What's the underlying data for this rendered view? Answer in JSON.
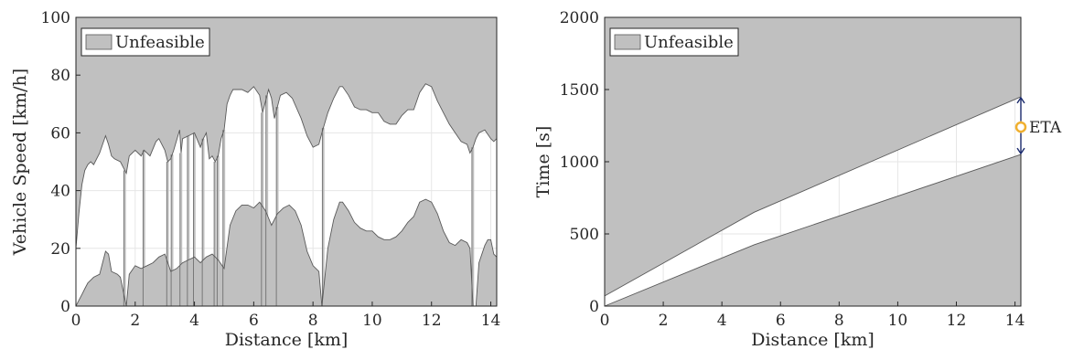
{
  "colors": {
    "unfeasible_fill": "#c0c0c0",
    "boundary_line": "#595959",
    "grid": "#e6e6e6",
    "eta_marker": "#f0b030",
    "eta_arrow": "#1a2a6c"
  },
  "chart_data": [
    {
      "type": "area",
      "xlabel": "Distance [km]",
      "ylabel": "Vehicle Speed [km/h]",
      "xlim": [
        0,
        14.2
      ],
      "ylim": [
        0,
        100
      ],
      "xticks": [
        0,
        2,
        4,
        6,
        8,
        10,
        12,
        14
      ],
      "xtick_labels": [
        "0",
        "2",
        "4",
        "6",
        "8",
        "10",
        "12",
        "14"
      ],
      "yticks": [
        0,
        20,
        40,
        60,
        80,
        100
      ],
      "ytick_labels": [
        "0",
        "20",
        "40",
        "60",
        "80",
        "100"
      ],
      "grid": true,
      "legend": {
        "entries": [
          "Unfeasible"
        ],
        "location": "top-left"
      },
      "series": [
        {
          "name": "Unfeasible",
          "role": "upper speed bound",
          "x": [
            0,
            0.1,
            0.2,
            0.3,
            0.4,
            0.5,
            0.6,
            0.8,
            1.0,
            1.1,
            1.2,
            1.3,
            1.5,
            1.6,
            1.7,
            1.8,
            2.0,
            2.2,
            2.3,
            2.5,
            2.7,
            2.8,
            3.0,
            3.1,
            3.2,
            3.3,
            3.5,
            3.55,
            3.6,
            3.8,
            4.0,
            4.2,
            4.3,
            4.4,
            4.5,
            4.6,
            4.7,
            4.8,
            4.9,
            5.0,
            5.1,
            5.2,
            5.3,
            5.6,
            5.8,
            6.0,
            6.2,
            6.3,
            6.5,
            6.6,
            6.7,
            6.9,
            7.1,
            7.3,
            7.6,
            7.8,
            8.0,
            8.2,
            8.3,
            8.5,
            8.7,
            8.9,
            9.0,
            9.2,
            9.4,
            9.6,
            9.8,
            10.0,
            10.2,
            10.4,
            10.6,
            10.8,
            11.0,
            11.2,
            11.4,
            11.6,
            11.8,
            12.0,
            12.2,
            12.4,
            12.6,
            12.8,
            13.0,
            13.2,
            13.3,
            13.4,
            13.5,
            13.6,
            13.8,
            14.0,
            14.1,
            14.2
          ],
          "values": [
            20,
            32,
            42,
            47,
            49,
            50,
            49,
            53,
            59,
            56,
            52,
            51,
            50,
            48,
            46,
            52,
            54,
            52,
            54,
            52,
            57,
            58,
            54,
            50,
            51,
            54,
            61,
            53,
            58,
            59,
            60,
            55,
            58,
            60,
            51,
            52,
            50,
            52,
            58,
            61,
            70,
            73,
            75,
            75,
            74,
            76,
            73,
            67,
            75,
            72,
            65,
            73,
            74,
            72,
            65,
            59,
            55,
            56,
            60,
            67,
            72,
            76,
            76,
            73,
            69,
            68,
            68,
            67,
            67,
            64,
            63,
            63,
            66,
            68,
            68,
            74,
            77,
            76,
            71,
            67,
            63,
            60,
            57,
            56,
            53,
            55,
            58,
            60,
            61,
            58,
            57,
            58
          ]
        },
        {
          "name": "Unfeasible",
          "role": "lower speed bound",
          "x": [
            0,
            0.1,
            0.2,
            0.3,
            0.4,
            0.5,
            0.6,
            0.8,
            1.0,
            1.1,
            1.2,
            1.4,
            1.5,
            1.6,
            1.7,
            1.8,
            2.0,
            2.2,
            2.4,
            2.6,
            2.8,
            3.0,
            3.2,
            3.4,
            3.6,
            3.8,
            4.0,
            4.2,
            4.4,
            4.6,
            4.8,
            5.0,
            5.2,
            5.4,
            5.6,
            5.8,
            6.0,
            6.2,
            6.4,
            6.6,
            6.8,
            7.0,
            7.2,
            7.4,
            7.6,
            7.8,
            8.0,
            8.2,
            8.3,
            8.5,
            8.7,
            8.9,
            9.0,
            9.2,
            9.4,
            9.6,
            9.8,
            10.0,
            10.2,
            10.4,
            10.6,
            10.8,
            11.0,
            11.2,
            11.4,
            11.6,
            11.8,
            12.0,
            12.2,
            12.4,
            12.6,
            12.8,
            13.0,
            13.2,
            13.3,
            13.4,
            13.5,
            13.6,
            13.8,
            13.9,
            14.0,
            14.1,
            14.2
          ],
          "values": [
            0,
            2,
            4,
            6,
            8,
            9,
            10,
            11,
            19,
            18,
            12,
            11,
            10,
            5,
            0,
            11,
            14,
            13,
            14,
            15,
            17,
            18,
            12,
            13,
            15,
            16,
            17,
            15,
            17,
            18,
            16,
            13,
            28,
            33,
            35,
            35,
            34,
            36,
            33,
            28,
            32,
            34,
            35,
            33,
            28,
            19,
            14,
            12,
            0,
            20,
            30,
            36,
            36,
            33,
            29,
            27,
            26,
            26,
            24,
            23,
            23,
            24,
            26,
            29,
            31,
            36,
            37,
            36,
            32,
            26,
            22,
            21,
            23,
            22,
            20,
            0,
            0,
            15,
            21,
            23,
            23,
            18,
            17
          ]
        }
      ],
      "feasibility_gaps_x": [
        1.65,
        2.3,
        3.1,
        3.25,
        3.55,
        3.8,
        4.0,
        4.3,
        4.7,
        4.8,
        5.0,
        6.3,
        6.45,
        6.8,
        8.35,
        13.4
      ]
    },
    {
      "type": "area",
      "xlabel": "Distance [km]",
      "ylabel": "Time [s]",
      "xlim": [
        0,
        14.2
      ],
      "ylim": [
        0,
        2000
      ],
      "xticks": [
        0,
        2,
        4,
        6,
        8,
        10,
        12,
        14
      ],
      "xtick_labels": [
        "0",
        "2",
        "4",
        "6",
        "8",
        "10",
        "12",
        "14"
      ],
      "yticks": [
        0,
        500,
        1000,
        1500,
        2000
      ],
      "ytick_labels": [
        "0",
        "500",
        "1000",
        "1500",
        "2000"
      ],
      "grid": true,
      "legend": {
        "entries": [
          "Unfeasible"
        ],
        "location": "top-left"
      },
      "series": [
        {
          "name": "Unfeasible",
          "role": "upper time bound",
          "x": [
            0,
            5.1,
            14.2
          ],
          "values": [
            70,
            650,
            1450
          ]
        },
        {
          "name": "Unfeasible",
          "role": "lower time bound",
          "x": [
            0,
            5.1,
            14.2
          ],
          "values": [
            0,
            425,
            1050
          ]
        }
      ],
      "annotation": {
        "label": "ETA",
        "x": 14.2,
        "y": 1240
      }
    }
  ]
}
